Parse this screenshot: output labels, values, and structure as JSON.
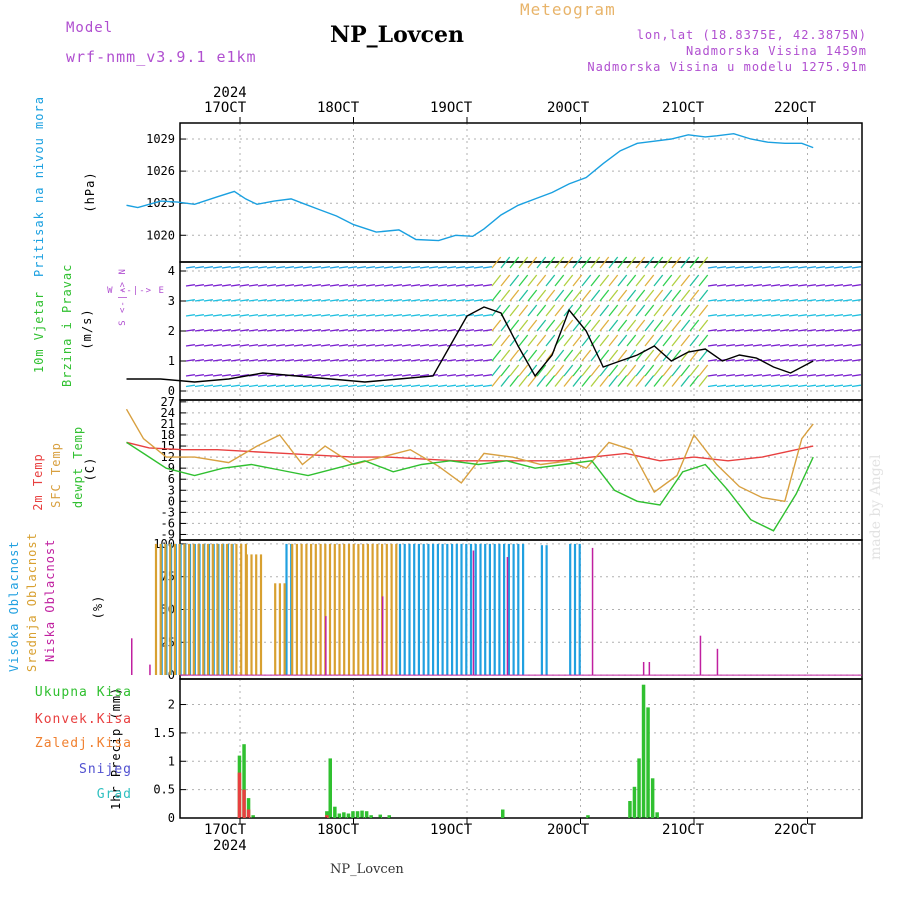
{
  "header": {
    "model_label": "Model",
    "model_name": "wrf-nmm_v3.9.1 e1km",
    "title": "NP_Lovcen",
    "meteogram_label": "Meteogram",
    "lonlat": "lon,lat (18.8375E, 42.3875N)",
    "elevation": "Nadmorska Visina 1459m",
    "model_elevation": "Nadmorska Visina u modelu 1275.91m",
    "credit": "made by Angel",
    "bottom_station": "NP_Lovcen"
  },
  "colors": {
    "pressure": "#1aa0e0",
    "t2m": "#e84040",
    "sfc": "#d8a040",
    "dewpt": "#30c030",
    "high_cloud": "#20a0e0",
    "mid_cloud": "#d8a030",
    "low_cloud": "#c020a0",
    "total_precip": "#30c030",
    "convective": "#e84040",
    "frozen": "#f08030",
    "snow": "#5050d0",
    "grad": "#30c0c0",
    "model_text": "#b04fd0"
  },
  "chart_data": [
    {
      "type": "line",
      "panel": "pressure",
      "top_axis_year": "2024",
      "top_ticks": [
        "17OCT",
        "18OCT",
        "19OCT",
        "20OCT",
        "21OCT",
        "22OCT"
      ],
      "ylabel_main": "Pritisak na nivou mora",
      "ylabel_unit": "(hPa)",
      "ylim": [
        1017.5,
        1030.5
      ],
      "yticks": [
        1020,
        1023,
        1026,
        1029
      ],
      "grid": true,
      "series": [
        {
          "color_key": "pressure",
          "x": [
            0,
            0.1,
            0.2,
            0.3,
            0.45,
            0.6,
            0.8,
            0.95,
            1.05,
            1.15,
            1.3,
            1.45,
            1.55,
            1.7,
            1.85,
            2.0,
            2.2,
            2.4,
            2.55,
            2.75,
            2.9,
            3.05,
            3.15,
            3.3,
            3.45,
            3.6,
            3.75,
            3.9,
            4.05,
            4.2,
            4.35,
            4.5,
            4.65,
            4.8,
            4.95,
            5.1,
            5.2,
            5.35,
            5.5,
            5.65,
            5.8,
            5.95,
            6.05
          ],
          "y": [
            1022.8,
            1022.6,
            1022.9,
            1023.2,
            1023.1,
            1022.9,
            1023.6,
            1024.1,
            1023.4,
            1022.9,
            1023.2,
            1023.4,
            1023.0,
            1022.4,
            1021.8,
            1021.0,
            1020.3,
            1020.5,
            1019.6,
            1019.5,
            1020.0,
            1019.9,
            1020.6,
            1021.9,
            1022.8,
            1023.4,
            1024.0,
            1024.8,
            1025.4,
            1026.7,
            1027.9,
            1028.6,
            1028.8,
            1029.0,
            1029.4,
            1029.2,
            1029.3,
            1029.5,
            1029.0,
            1028.7,
            1028.6,
            1028.6,
            1028.2
          ]
        }
      ]
    },
    {
      "type": "line",
      "panel": "wind",
      "ylabel_main": "10m Vjetar",
      "ylabel_sub": "Brzina i Pravac",
      "ylabel_unit": "(m/s)",
      "compass": "W <-|-> E",
      "compass_v": "S <-|-> N",
      "ylim": [
        -0.3,
        4.3
      ],
      "yticks": [
        0,
        1,
        2,
        3,
        4
      ],
      "grid": true,
      "series": [
        {
          "name": "",
          "x": [
            0,
            0.3,
            0.6,
            0.9,
            1.2,
            1.5,
            1.8,
            2.1,
            2.4,
            2.7,
            2.85,
            3.0,
            3.15,
            3.3,
            3.45,
            3.6,
            3.75,
            3.9,
            4.05,
            4.2,
            4.35,
            4.5,
            4.65,
            4.8,
            4.95,
            5.1,
            5.25,
            5.4,
            5.55,
            5.7,
            5.85,
            6.05
          ],
          "y": [
            0.4,
            0.4,
            0.3,
            0.4,
            0.6,
            0.5,
            0.4,
            0.3,
            0.4,
            0.5,
            1.5,
            2.5,
            2.8,
            2.6,
            1.5,
            0.5,
            1.2,
            2.7,
            2.0,
            0.8,
            1.0,
            1.2,
            1.5,
            1.0,
            1.3,
            1.4,
            1.0,
            1.2,
            1.1,
            0.8,
            0.6,
            1.0
          ]
        }
      ]
    },
    {
      "type": "line",
      "panel": "temperature",
      "ylabel_lines": [
        "2m Temp",
        "SFC Temp",
        "dewpt Temp"
      ],
      "ylabel_unit": "(C)",
      "ylim": [
        -10.5,
        27.5
      ],
      "yticks": [
        -9,
        -6,
        -3,
        0,
        3,
        6,
        9,
        12,
        15,
        18,
        21,
        24,
        27
      ],
      "grid": true,
      "series": [
        {
          "name": "2m Temp",
          "color_key": "t2m",
          "x": [
            0,
            0.2,
            0.5,
            0.8,
            1.1,
            1.4,
            1.7,
            2.0,
            2.3,
            2.6,
            2.9,
            3.2,
            3.5,
            3.8,
            4.1,
            4.4,
            4.7,
            5.0,
            5.3,
            5.6,
            5.9,
            6.05
          ],
          "y": [
            16,
            14.5,
            14,
            14,
            13.5,
            13,
            12.5,
            12,
            12,
            11.5,
            11,
            11,
            11,
            11,
            12,
            13,
            11,
            12,
            11,
            12,
            14,
            15
          ]
        },
        {
          "name": "SFC Temp",
          "color_key": "sfc",
          "x": [
            0,
            0.15,
            0.35,
            0.6,
            0.9,
            1.15,
            1.35,
            1.55,
            1.75,
            2.0,
            2.25,
            2.5,
            2.75,
            2.95,
            3.15,
            3.4,
            3.65,
            3.9,
            4.05,
            4.25,
            4.45,
            4.65,
            4.85,
            5.0,
            5.2,
            5.4,
            5.6,
            5.8,
            5.95,
            6.05
          ],
          "y": [
            25,
            17,
            12,
            12,
            10.5,
            15,
            18,
            10,
            15,
            10,
            12,
            14,
            9.5,
            5,
            13,
            12,
            10,
            11,
            9,
            16,
            14,
            2.5,
            7,
            18,
            10,
            4,
            1,
            0,
            17,
            21
          ]
        },
        {
          "name": "dewpt Temp",
          "color_key": "dewpt",
          "x": [
            0,
            0.15,
            0.35,
            0.6,
            0.85,
            1.1,
            1.35,
            1.6,
            1.85,
            2.1,
            2.35,
            2.6,
            2.85,
            3.1,
            3.35,
            3.6,
            3.85,
            4.1,
            4.3,
            4.5,
            4.7,
            4.9,
            5.1,
            5.3,
            5.5,
            5.7,
            5.9,
            6.05
          ],
          "y": [
            16,
            13,
            9,
            7,
            9,
            10,
            8.5,
            7,
            9,
            11,
            8,
            10,
            11,
            10,
            11,
            9,
            10,
            11,
            3,
            0,
            -1,
            8,
            10,
            3,
            -5,
            -8,
            2,
            12
          ]
        }
      ]
    },
    {
      "type": "bar",
      "panel": "cloud",
      "ylabel_lines": [
        "Visoka Oblacnost",
        "Srednja Oblacnost",
        "Niska Oblacnost"
      ],
      "ylabel_unit": "(%)",
      "ylim": [
        -3,
        103
      ],
      "yticks": [
        0,
        25,
        50,
        75,
        100
      ],
      "grid": true,
      "series": [
        {
          "name": "Visoka Oblacnost",
          "color_key": "high_cloud",
          "ranges": [
            [
              0.3,
              0.95,
              100
            ],
            [
              1.4,
              1.45,
              100
            ],
            [
              2.4,
              3.5,
              100
            ],
            [
              3.9,
              4.0,
              100
            ],
            [
              3.65,
              3.7,
              99
            ]
          ]
        },
        {
          "name": "Srednja Oblacnost",
          "color_key": "mid_cloud",
          "ranges": [
            [
              0.25,
              1.05,
              100
            ],
            [
              1.05,
              1.2,
              92
            ],
            [
              1.45,
              2.4,
              100
            ],
            [
              1.3,
              1.4,
              70
            ]
          ]
        },
        {
          "name": "Niska Oblacnost",
          "color_key": "low_cloud",
          "spikes": [
            [
              0.04,
              28
            ],
            [
              0.2,
              8
            ],
            [
              1.75,
              45
            ],
            [
              2.25,
              60
            ],
            [
              3.05,
              95
            ],
            [
              3.35,
              90
            ],
            [
              4.1,
              97
            ],
            [
              4.55,
              10
            ],
            [
              4.6,
              10
            ],
            [
              5.05,
              30
            ],
            [
              5.2,
              20
            ]
          ]
        }
      ]
    },
    {
      "type": "bar",
      "panel": "precip",
      "legend": [
        "Ukupna Kisa",
        "Konvek.Kisa",
        "Zaledj.Kisa",
        "Snijeg",
        "Grad"
      ],
      "ylabel_unit": "1hr Precip (mm)",
      "bottom_ticks": [
        "17OCT",
        "18OCT",
        "19OCT",
        "20OCT",
        "21OCT",
        "22OCT"
      ],
      "bottom_year": "2024",
      "ylim": [
        0,
        2.45
      ],
      "yticks": [
        0,
        0.5,
        1,
        1.5,
        2
      ],
      "grid": true,
      "series": [
        {
          "name": "Ukupna Kisa",
          "color_key": "total_precip",
          "bars": [
            [
              0.98,
              1.1
            ],
            [
              1.02,
              1.3
            ],
            [
              1.06,
              0.35
            ],
            [
              1.1,
              0.05
            ],
            [
              1.75,
              0.12
            ],
            [
              1.78,
              1.05
            ],
            [
              1.82,
              0.2
            ],
            [
              1.86,
              0.08
            ],
            [
              1.9,
              0.1
            ],
            [
              1.94,
              0.08
            ],
            [
              1.98,
              0.12
            ],
            [
              2.02,
              0.12
            ],
            [
              2.06,
              0.13
            ],
            [
              2.1,
              0.12
            ],
            [
              2.14,
              0.05
            ],
            [
              2.22,
              0.06
            ],
            [
              2.3,
              0.05
            ],
            [
              3.3,
              0.15
            ],
            [
              4.05,
              0.05
            ],
            [
              4.42,
              0.3
            ],
            [
              4.46,
              0.55
            ],
            [
              4.5,
              1.05
            ],
            [
              4.54,
              2.35
            ],
            [
              4.58,
              1.95
            ],
            [
              4.62,
              0.7
            ],
            [
              4.66,
              0.1
            ]
          ]
        },
        {
          "name": "Konvek.Kisa",
          "color_key": "convective",
          "bars": [
            [
              0.98,
              0.8
            ],
            [
              1.02,
              0.5
            ],
            [
              1.06,
              0.15
            ],
            [
              1.75,
              0.05
            ]
          ]
        }
      ]
    }
  ]
}
